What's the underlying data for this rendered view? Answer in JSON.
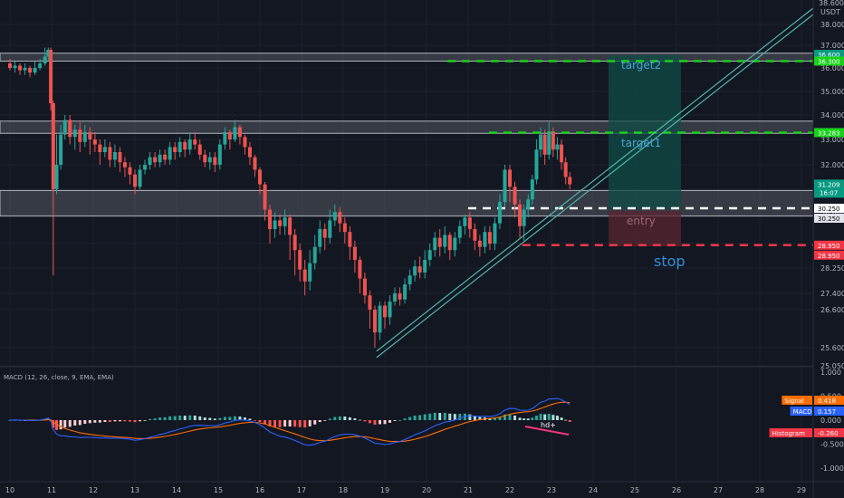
{
  "chart_data": {
    "type": "candlestick",
    "title": "",
    "currency": "USDT",
    "y_axis": {
      "ylim": [
        25.0,
        39.0
      ],
      "ticks": [
        {
          "v": 38.0,
          "label": "38.000"
        },
        {
          "v": 37.0,
          "label": "37.000"
        },
        {
          "v": 36.0,
          "label": "36.000"
        },
        {
          "v": 35.0,
          "label": "35.000"
        },
        {
          "v": 34.0,
          "label": "34.000"
        },
        {
          "v": 33.0,
          "label": "33.000"
        },
        {
          "v": 32.0,
          "label": "32.000"
        },
        {
          "v": 31.0,
          "label": "31.000"
        },
        {
          "v": 30.0,
          "label": "30.000"
        },
        {
          "v": 29.0,
          "label": "29.000"
        },
        {
          "v": 28.25,
          "label": "28.250"
        },
        {
          "v": 27.4,
          "label": "27.400"
        },
        {
          "v": 26.6,
          "label": "26.600"
        },
        {
          "v": 25.6,
          "label": "25.600"
        },
        {
          "v": 25.05,
          "label": "25.050"
        }
      ],
      "top_partial_label": "38.600"
    },
    "x_axis": {
      "labels": [
        "10",
        "11",
        "12",
        "13",
        "14",
        "15",
        "16",
        "17",
        "18",
        "19",
        "20",
        "21",
        "22",
        "23",
        "24",
        "25",
        "26",
        "27",
        "28",
        "29"
      ]
    },
    "price_tags": [
      {
        "v": 36.6,
        "label": "36.600",
        "color": "#089981"
      },
      {
        "v": 36.3,
        "label": "36.300",
        "color": "#1ad11a"
      },
      {
        "v": 33.28,
        "label": "33.283",
        "color": "#1ad11a"
      },
      {
        "v": 31.21,
        "label": "31.209",
        "color": "#089981",
        "sub": "16:07"
      },
      {
        "v": 30.25,
        "label": "30.250",
        "color": "#ffffff",
        "text_color": "#000000"
      },
      {
        "v": 30.25,
        "label": "30.250",
        "color": "#e0e3eb",
        "text_color": "#000000",
        "offset": 1
      },
      {
        "v": 28.95,
        "label": "28.950",
        "color": "#f23645"
      },
      {
        "v": 28.95,
        "label": "28.950",
        "color": "#f23645",
        "offset": 1
      }
    ],
    "zones": [
      {
        "from": 36.3,
        "to": 36.65,
        "color": "#787b86"
      },
      {
        "from": 33.25,
        "to": 33.75,
        "color": "#787b86"
      },
      {
        "from": 29.95,
        "to": 30.95,
        "color": "#787b86"
      }
    ],
    "levels": [
      {
        "v": 36.3,
        "color": "#1ad11a",
        "style": "dashed",
        "from_day": 20.5
      },
      {
        "v": 33.28,
        "color": "#1ad11a",
        "style": "dashed",
        "from_day": 21.5
      },
      {
        "v": 30.25,
        "color": "#ffffff",
        "style": "dashed",
        "from_day": 21.0
      },
      {
        "v": 28.95,
        "color": "#f23645",
        "style": "dashed",
        "from_day": 22.3
      }
    ],
    "annotations": {
      "target2": "target2",
      "target1": "target1",
      "entry": "entry",
      "stop": "stop",
      "divergence": "hd+"
    },
    "trendline": {
      "start": [
        18.8,
        25.3
      ],
      "end": [
        29.6,
        38.5
      ]
    },
    "macd": {
      "title": "MACD (12, 26, close, 9, EMA, EMA)",
      "ylim": [
        -1.1,
        1.05
      ],
      "ticks": [
        {
          "v": 1.0,
          "label": "1.000"
        },
        {
          "v": 0.5,
          "label": "0.500"
        },
        {
          "v": 0.0,
          "label": "0.000"
        },
        {
          "v": -0.5,
          "label": "-0.500"
        },
        {
          "v": -1.0,
          "label": "-1.000"
        }
      ],
      "legend": [
        {
          "name": "Signal",
          "value": "0.418",
          "color": "#ff6d00"
        },
        {
          "name": "MACD",
          "value": "0.157",
          "color": "#2962ff"
        },
        {
          "name": "Histogram",
          "value": "-0.260",
          "color": "#f23645"
        }
      ]
    },
    "candles": [
      [
        10.0,
        36.2,
        36.0,
        36.4,
        35.9
      ],
      [
        10.12,
        36.0,
        36.1,
        36.3,
        35.8
      ],
      [
        10.24,
        36.1,
        35.9,
        36.2,
        35.7
      ],
      [
        10.36,
        35.9,
        36.0,
        36.2,
        35.7
      ],
      [
        10.48,
        36.0,
        35.8,
        36.1,
        35.6
      ],
      [
        10.6,
        35.8,
        36.0,
        36.3,
        35.7
      ],
      [
        10.72,
        36.0,
        36.2,
        36.4,
        35.9
      ],
      [
        10.84,
        36.2,
        36.5,
        36.9,
        36.1
      ],
      [
        10.92,
        36.5,
        36.8,
        36.9,
        36.3
      ],
      [
        10.98,
        36.8,
        34.5,
        36.9,
        34.2
      ],
      [
        11.04,
        34.5,
        31.0,
        34.6,
        28.0
      ],
      [
        11.12,
        31.0,
        32.0,
        33.2,
        30.8
      ],
      [
        11.22,
        32.0,
        33.2,
        33.6,
        31.8
      ],
      [
        11.32,
        33.2,
        33.8,
        34.0,
        33.0
      ],
      [
        11.44,
        33.8,
        33.1,
        34.0,
        32.8
      ],
      [
        11.56,
        33.1,
        33.4,
        33.6,
        32.6
      ],
      [
        11.68,
        33.4,
        32.9,
        33.7,
        32.5
      ],
      [
        11.8,
        32.9,
        33.3,
        33.6,
        32.7
      ],
      [
        11.92,
        33.3,
        33.0,
        33.5,
        32.4
      ],
      [
        12.04,
        33.0,
        32.8,
        33.3,
        32.5
      ],
      [
        12.16,
        32.8,
        32.5,
        33.0,
        32.0
      ],
      [
        12.28,
        32.5,
        32.7,
        33.0,
        32.3
      ],
      [
        12.4,
        32.7,
        32.2,
        32.9,
        31.9
      ],
      [
        12.52,
        32.2,
        32.5,
        32.8,
        31.9
      ],
      [
        12.64,
        32.5,
        32.1,
        32.7,
        31.7
      ],
      [
        12.76,
        32.1,
        31.9,
        32.3,
        31.5
      ],
      [
        12.88,
        31.9,
        31.6,
        32.1,
        31.2
      ],
      [
        13.0,
        31.6,
        31.1,
        31.8,
        30.8
      ],
      [
        13.12,
        31.1,
        31.8,
        32.0,
        31.0
      ],
      [
        13.24,
        31.8,
        32.0,
        32.2,
        31.6
      ],
      [
        13.36,
        32.0,
        32.3,
        32.5,
        31.8
      ],
      [
        13.48,
        32.3,
        32.1,
        32.5,
        31.9
      ],
      [
        13.6,
        32.1,
        32.4,
        32.6,
        31.9
      ],
      [
        13.72,
        32.4,
        32.2,
        32.6,
        32.0
      ],
      [
        13.84,
        32.2,
        32.7,
        32.9,
        32.0
      ],
      [
        13.96,
        32.7,
        32.5,
        32.9,
        32.2
      ],
      [
        14.08,
        32.5,
        32.9,
        33.1,
        32.3
      ],
      [
        14.2,
        32.9,
        32.6,
        33.0,
        32.3
      ],
      [
        14.32,
        32.6,
        33.0,
        33.3,
        32.4
      ],
      [
        14.44,
        33.0,
        32.8,
        33.3,
        32.6
      ],
      [
        14.56,
        32.8,
        32.4,
        33.0,
        32.2
      ],
      [
        14.68,
        32.4,
        32.1,
        32.6,
        31.9
      ],
      [
        14.8,
        32.1,
        32.3,
        32.5,
        31.8
      ],
      [
        14.92,
        32.3,
        32.0,
        32.5,
        31.7
      ],
      [
        15.04,
        32.0,
        32.8,
        33.0,
        31.8
      ],
      [
        15.16,
        32.8,
        33.3,
        33.5,
        32.6
      ],
      [
        15.28,
        33.3,
        33.0,
        33.4,
        32.6
      ],
      [
        15.4,
        33.0,
        33.5,
        33.8,
        32.9
      ],
      [
        15.52,
        33.5,
        33.1,
        33.6,
        32.8
      ],
      [
        15.64,
        33.1,
        32.7,
        33.2,
        32.4
      ],
      [
        15.76,
        32.7,
        32.3,
        32.9,
        32.0
      ],
      [
        15.88,
        32.3,
        31.8,
        32.4,
        31.5
      ],
      [
        16.0,
        31.8,
        31.2,
        31.9,
        30.8
      ],
      [
        16.12,
        31.2,
        30.2,
        31.3,
        29.8
      ],
      [
        16.24,
        30.2,
        29.5,
        30.4,
        29.0
      ],
      [
        16.36,
        29.5,
        29.8,
        30.1,
        29.2
      ],
      [
        16.48,
        29.8,
        29.6,
        30.0,
        29.3
      ],
      [
        16.6,
        29.6,
        29.9,
        30.2,
        29.3
      ],
      [
        16.72,
        29.9,
        29.3,
        30.0,
        28.5
      ],
      [
        16.84,
        29.3,
        28.8,
        29.5,
        28.0
      ],
      [
        16.96,
        28.8,
        28.2,
        29.0,
        27.8
      ],
      [
        17.08,
        28.2,
        27.8,
        28.5,
        27.3
      ],
      [
        17.2,
        27.8,
        28.4,
        28.8,
        27.5
      ],
      [
        17.32,
        28.4,
        28.9,
        29.3,
        28.2
      ],
      [
        17.44,
        28.9,
        29.5,
        29.8,
        28.7
      ],
      [
        17.56,
        29.5,
        29.2,
        29.7,
        28.8
      ],
      [
        17.68,
        29.2,
        29.8,
        30.2,
        29.0
      ],
      [
        17.8,
        29.8,
        30.1,
        30.4,
        29.6
      ],
      [
        17.92,
        30.1,
        29.7,
        30.3,
        29.4
      ],
      [
        18.04,
        29.7,
        29.4,
        29.9,
        29.0
      ],
      [
        18.16,
        29.4,
        28.9,
        29.6,
        28.5
      ],
      [
        18.28,
        28.9,
        28.5,
        29.1,
        28.1
      ],
      [
        18.4,
        28.5,
        27.9,
        28.6,
        27.4
      ],
      [
        18.52,
        27.9,
        27.3,
        28.1,
        26.9
      ],
      [
        18.64,
        27.3,
        26.6,
        27.5,
        26.1
      ],
      [
        18.76,
        26.6,
        26.0,
        26.8,
        25.6
      ],
      [
        18.88,
        26.0,
        26.8,
        27.0,
        25.8
      ],
      [
        19.0,
        26.8,
        26.4,
        27.0,
        26.1
      ],
      [
        19.12,
        26.4,
        27.0,
        27.3,
        26.2
      ],
      [
        19.24,
        27.0,
        27.4,
        27.6,
        26.8
      ],
      [
        19.36,
        27.4,
        27.1,
        27.6,
        26.8
      ],
      [
        19.48,
        27.1,
        27.7,
        27.9,
        26.9
      ],
      [
        19.6,
        27.7,
        28.0,
        28.2,
        27.5
      ],
      [
        19.72,
        28.0,
        28.3,
        28.5,
        27.8
      ],
      [
        19.84,
        28.3,
        28.1,
        28.6,
        27.9
      ],
      [
        19.96,
        28.1,
        28.5,
        28.8,
        27.9
      ],
      [
        20.08,
        28.5,
        28.8,
        29.0,
        28.3
      ],
      [
        20.2,
        28.8,
        29.2,
        29.4,
        28.6
      ],
      [
        20.32,
        29.2,
        28.9,
        29.5,
        28.6
      ],
      [
        20.44,
        28.9,
        29.3,
        29.6,
        28.7
      ],
      [
        20.56,
        29.3,
        28.8,
        29.4,
        28.5
      ],
      [
        20.68,
        28.8,
        29.2,
        29.4,
        28.6
      ],
      [
        20.8,
        29.2,
        29.6,
        29.8,
        29.0
      ],
      [
        20.92,
        29.6,
        29.9,
        30.0,
        29.3
      ],
      [
        21.04,
        29.9,
        29.5,
        30.1,
        29.2
      ],
      [
        21.16,
        29.5,
        29.1,
        29.7,
        28.8
      ],
      [
        21.28,
        29.1,
        28.9,
        29.3,
        28.6
      ],
      [
        21.4,
        28.9,
        29.4,
        29.6,
        28.7
      ],
      [
        21.52,
        29.4,
        29.0,
        29.6,
        28.8
      ],
      [
        21.64,
        29.0,
        29.7,
        29.9,
        28.8
      ],
      [
        21.76,
        29.7,
        30.5,
        30.8,
        29.5
      ],
      [
        21.88,
        30.5,
        31.8,
        32.0,
        30.3
      ],
      [
        22.0,
        31.8,
        31.1,
        32.0,
        30.5
      ],
      [
        22.12,
        31.1,
        30.4,
        31.3,
        29.9
      ],
      [
        22.24,
        30.4,
        29.6,
        30.6,
        29.2
      ],
      [
        22.34,
        29.6,
        30.2,
        30.4,
        29.1
      ],
      [
        22.44,
        30.2,
        30.6,
        30.8,
        29.9
      ],
      [
        22.54,
        30.6,
        31.4,
        31.6,
        30.4
      ],
      [
        22.64,
        31.4,
        32.6,
        33.0,
        31.2
      ],
      [
        22.74,
        32.6,
        33.2,
        33.5,
        32.3
      ],
      [
        22.84,
        33.2,
        32.4,
        33.4,
        32.0
      ],
      [
        22.94,
        32.4,
        33.3,
        33.7,
        32.2
      ],
      [
        23.04,
        33.3,
        32.6,
        33.5,
        32.3
      ],
      [
        23.14,
        32.6,
        32.8,
        33.1,
        32.2
      ],
      [
        23.24,
        32.8,
        32.1,
        33.0,
        31.8
      ],
      [
        23.34,
        32.1,
        31.5,
        32.3,
        31.2
      ],
      [
        23.44,
        31.5,
        31.2,
        31.7,
        31.0
      ]
    ]
  }
}
